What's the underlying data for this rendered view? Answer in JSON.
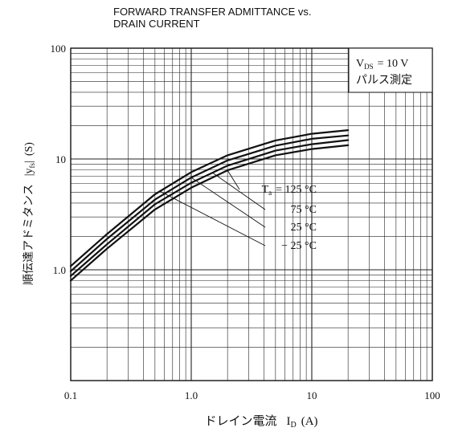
{
  "chart_data": {
    "type": "line",
    "title_lines": [
      "FORWARD TRANSFER ADMITTANCE vs.",
      "DRAIN CURRENT"
    ],
    "xlabel": "ドレイン電流 I_D (A)",
    "xlabel_main": "ドレイン電流",
    "xlabel_var": "I",
    "xlabel_sub": "D",
    "xlabel_unit": "(A)",
    "ylabel": "順伝達アドミタンス |y_fs| (S)",
    "ylabel_main": "順伝達アドミタンス",
    "ylabel_bars": "|y",
    "ylabel_sub": "fs",
    "ylabel_unit": "(S)",
    "x_scale": "log",
    "y_scale": "log",
    "xlim": [
      0.1,
      100
    ],
    "ylim": [
      0.1,
      100
    ],
    "x_ticks": [
      "0.1",
      "1.0",
      "10",
      "100"
    ],
    "y_ticks": [
      "100",
      "10",
      "1.0"
    ],
    "grid": true,
    "condition_lines": [
      "V_DS = 10 V",
      "パルス測定"
    ],
    "condition_var": "V",
    "condition_sub": "DS",
    "condition_value": "= 10 V",
    "condition_note": "パルス測定",
    "series_label_prefix": "T",
    "series_label_sub": "a",
    "series": [
      {
        "name": "Ta = 125 °C",
        "label": "= 125 °C",
        "x": [
          0.1,
          0.2,
          0.5,
          1.0,
          2.0,
          5.0,
          10.0,
          20.0
        ],
        "y": [
          0.8,
          1.55,
          3.5,
          5.5,
          7.9,
          10.8,
          12.3,
          13.3
        ]
      },
      {
        "name": "Ta = 75 °C",
        "label": "75 °C",
        "x": [
          0.1,
          0.2,
          0.5,
          1.0,
          2.0,
          5.0,
          10.0,
          20.0
        ],
        "y": [
          0.88,
          1.7,
          3.9,
          6.1,
          8.7,
          11.9,
          13.6,
          14.8
        ]
      },
      {
        "name": "Ta = 25 °C",
        "label": "25 °C",
        "x": [
          0.1,
          0.2,
          0.5,
          1.0,
          2.0,
          5.0,
          10.0,
          20.0
        ],
        "y": [
          0.97,
          1.9,
          4.3,
          6.8,
          9.7,
          13.2,
          15.2,
          16.3
        ]
      },
      {
        "name": "Ta = -25 °C",
        "label": "− 25 °C",
        "x": [
          0.1,
          0.2,
          0.5,
          1.0,
          2.0,
          5.0,
          10.0,
          20.0
        ],
        "y": [
          1.08,
          2.1,
          4.8,
          7.6,
          10.8,
          14.7,
          16.9,
          18.2
        ]
      }
    ]
  }
}
